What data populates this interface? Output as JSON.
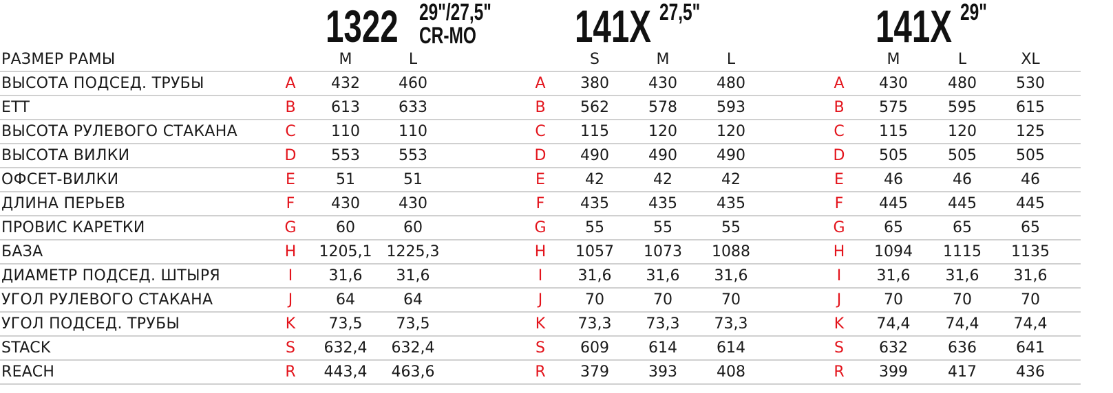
{
  "models": [
    {
      "name": "1322",
      "sup": "29\"/27,5\"",
      "sup2": "CR-MO",
      "sizes": [
        "M",
        "L"
      ]
    },
    {
      "name": "141X",
      "sup": "27,5\"",
      "sizes": [
        "S",
        "M",
        "L"
      ]
    },
    {
      "name": "141X",
      "sup": "29\"",
      "sizes": [
        "M",
        "L",
        "XL"
      ]
    }
  ],
  "header_label": "РАЗМЕР РАМЫ",
  "accent_color": "#e3131b",
  "rows": [
    {
      "label": "ВЫСОТА ПОДСЕД. ТРУБЫ",
      "letter": "A",
      "values": [
        [
          "432",
          "460"
        ],
        [
          "380",
          "430",
          "480"
        ],
        [
          "430",
          "480",
          "530"
        ]
      ]
    },
    {
      "label": "ETT",
      "letter": "B",
      "values": [
        [
          "613",
          "633"
        ],
        [
          "562",
          "578",
          "593"
        ],
        [
          "575",
          "595",
          "615"
        ]
      ]
    },
    {
      "label": "ВЫСОТА РУЛЕВОГО СТАКАНА",
      "letter": "C",
      "values": [
        [
          "110",
          "110"
        ],
        [
          "115",
          "120",
          "120"
        ],
        [
          "115",
          "120",
          "125"
        ]
      ]
    },
    {
      "label": "ВЫСОТА ВИЛКИ",
      "letter": "D",
      "values": [
        [
          "553",
          "553"
        ],
        [
          "490",
          "490",
          "490"
        ],
        [
          "505",
          "505",
          "505"
        ]
      ]
    },
    {
      "label": "ОФСЕТ-ВИЛКИ",
      "letter": "E",
      "values": [
        [
          "51",
          "51"
        ],
        [
          "42",
          "42",
          "42"
        ],
        [
          "46",
          "46",
          "46"
        ]
      ]
    },
    {
      "label": "ДЛИНА ПЕРЬЕВ",
      "letter": "F",
      "values": [
        [
          "430",
          "430"
        ],
        [
          "435",
          "435",
          "435"
        ],
        [
          "445",
          "445",
          "445"
        ]
      ]
    },
    {
      "label": "ПРОВИС КАРЕТКИ",
      "letter": "G",
      "values": [
        [
          "60",
          "60"
        ],
        [
          "55",
          "55",
          "55"
        ],
        [
          "65",
          "65",
          "65"
        ]
      ]
    },
    {
      "label": "БАЗА",
      "letter": "H",
      "values": [
        [
          "1205,1",
          "1225,3"
        ],
        [
          "1057",
          "1073",
          "1088"
        ],
        [
          "1094",
          "1115",
          "1135"
        ]
      ]
    },
    {
      "label": "ДИАМЕТР ПОДСЕД. ШТЫРЯ",
      "letter": "I",
      "values": [
        [
          "31,6",
          "31,6"
        ],
        [
          "31,6",
          "31,6",
          "31,6"
        ],
        [
          "31,6",
          "31,6",
          "31,6"
        ]
      ]
    },
    {
      "label": "УГОЛ РУЛЕВОГО СТАКАНА",
      "letter": "J",
      "values": [
        [
          "64",
          "64"
        ],
        [
          "70",
          "70",
          "70"
        ],
        [
          "70",
          "70",
          "70"
        ]
      ]
    },
    {
      "label": "УГОЛ ПОДСЕД. ТРУБЫ",
      "letter": "K",
      "values": [
        [
          "73,5",
          "73,5"
        ],
        [
          "73,3",
          "73,3",
          "73,3"
        ],
        [
          "74,4",
          "74,4",
          "74,4"
        ]
      ]
    },
    {
      "label": "STACK",
      "letter": "S",
      "values": [
        [
          "632,4",
          "632,4"
        ],
        [
          "609",
          "614",
          "614"
        ],
        [
          "632",
          "636",
          "641"
        ]
      ]
    },
    {
      "label": "REACH",
      "letter": "R",
      "values": [
        [
          "443,4",
          "463,6"
        ],
        [
          "379",
          "393",
          "408"
        ],
        [
          "399",
          "417",
          "436"
        ]
      ]
    }
  ]
}
